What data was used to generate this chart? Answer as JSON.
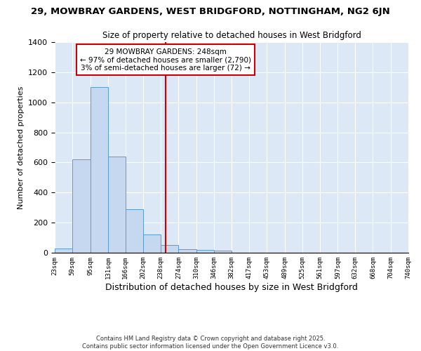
{
  "title1": "29, MOWBRAY GARDENS, WEST BRIDGFORD, NOTTINGHAM, NG2 6JN",
  "title2": "Size of property relative to detached houses in West Bridgford",
  "xlabel": "Distribution of detached houses by size in West Bridgford",
  "ylabel": "Number of detached properties",
  "annotation_line1": "29 MOWBRAY GARDENS: 248sqm",
  "annotation_line2": "← 97% of detached houses are smaller (2,790)",
  "annotation_line3": "3% of semi-detached houses are larger (72) →",
  "bar_left_edges": [
    23,
    59,
    95,
    131,
    166,
    202,
    238,
    274,
    310,
    346,
    382,
    417,
    453,
    489,
    525,
    561,
    597,
    632,
    668,
    704
  ],
  "bar_heights": [
    30,
    620,
    1100,
    640,
    290,
    120,
    50,
    25,
    20,
    15,
    0,
    0,
    0,
    0,
    0,
    0,
    0,
    0,
    0,
    0
  ],
  "bar_color": "#c5d8f0",
  "bar_edge_color": "#5b9bd5",
  "vline_x": 248,
  "vline_color": "#cc0000",
  "background_color": "#dce8f5",
  "ylim": [
    0,
    1400
  ],
  "xlim": [
    23,
    740
  ],
  "tick_labels": [
    "23sqm",
    "59sqm",
    "95sqm",
    "131sqm",
    "166sqm",
    "202sqm",
    "238sqm",
    "274sqm",
    "310sqm",
    "346sqm",
    "382sqm",
    "417sqm",
    "453sqm",
    "489sqm",
    "525sqm",
    "561sqm",
    "597sqm",
    "632sqm",
    "668sqm",
    "704sqm",
    "740sqm"
  ],
  "tick_positions": [
    23,
    59,
    95,
    131,
    166,
    202,
    238,
    274,
    310,
    346,
    382,
    417,
    453,
    489,
    525,
    561,
    597,
    632,
    668,
    704,
    740
  ],
  "footnote1": "Contains HM Land Registry data © Crown copyright and database right 2025.",
  "footnote2": "Contains public sector information licensed under the Open Government Licence v3.0."
}
